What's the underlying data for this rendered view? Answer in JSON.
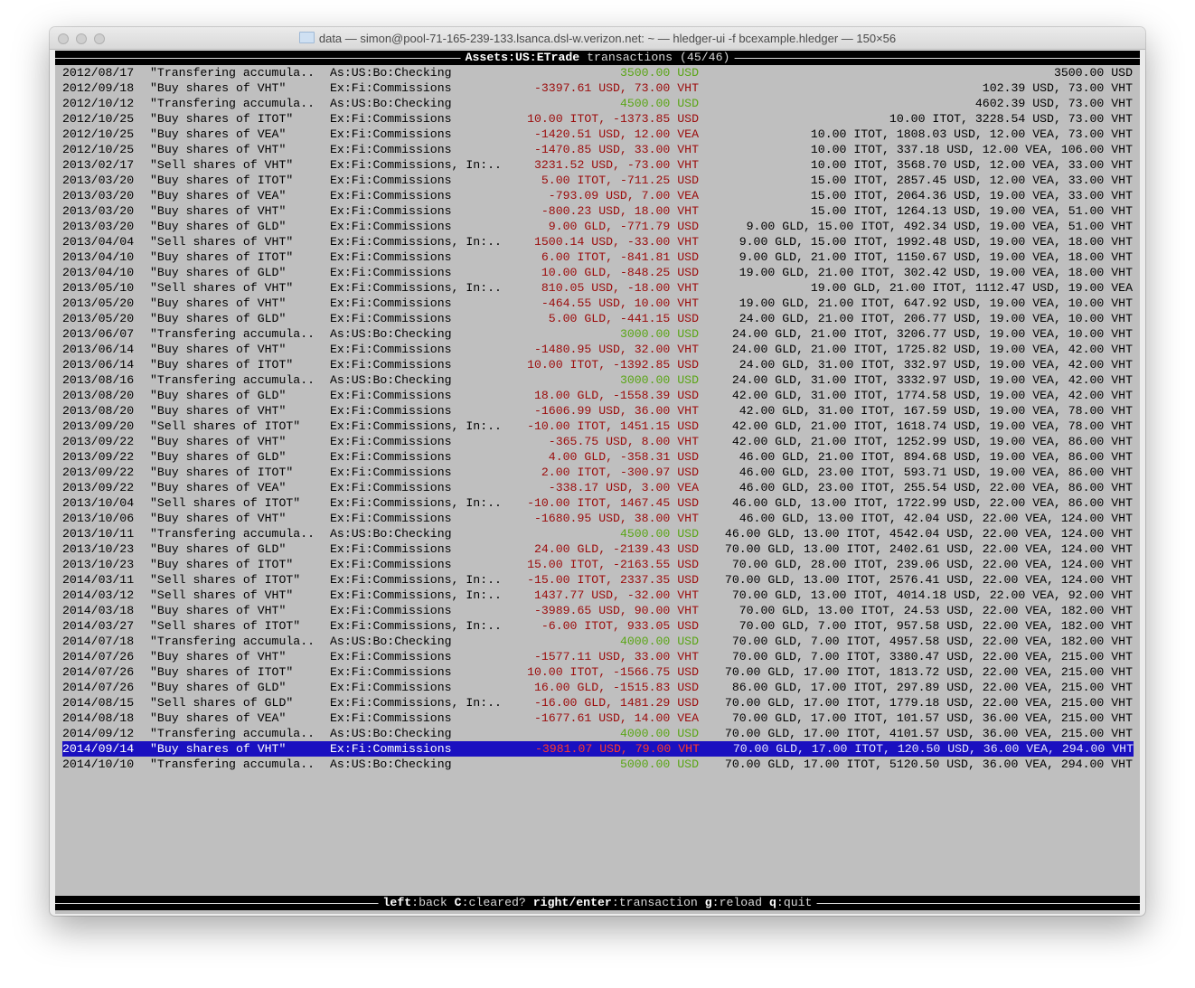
{
  "window": {
    "title": "data — simon@pool-71-165-239-133.lsanca.dsl-w.verizon.net: ~ — hledger-ui -f bcexample.hledger — 150×56"
  },
  "header": {
    "account": "Assets:US:ETrade",
    "suffix": " transactions (45/46)"
  },
  "colors": {
    "background": "#bfbfbf",
    "negative": "#9b0b0b",
    "positive": "#5aa516",
    "selection": "#1a10c0"
  },
  "selected_index": 44,
  "rows": [
    {
      "date": "2012/08/17",
      "desc": "\"Transfering accumula..",
      "account": "As:US:Bo:Checking",
      "amount": "3500.00 USD",
      "positive": true,
      "balance": "3500.00 USD"
    },
    {
      "date": "2012/09/18",
      "desc": "\"Buy shares of VHT\"",
      "account": "Ex:Fi:Commissions",
      "amount": "-3397.61 USD, 73.00 VHT",
      "positive": false,
      "balance": "102.39 USD, 73.00 VHT"
    },
    {
      "date": "2012/10/12",
      "desc": "\"Transfering accumula..",
      "account": "As:US:Bo:Checking",
      "amount": "4500.00 USD",
      "positive": true,
      "balance": "4602.39 USD, 73.00 VHT"
    },
    {
      "date": "2012/10/25",
      "desc": "\"Buy shares of ITOT\"",
      "account": "Ex:Fi:Commissions",
      "amount": "10.00 ITOT, -1373.85 USD",
      "positive": false,
      "balance": "10.00 ITOT, 3228.54 USD, 73.00 VHT"
    },
    {
      "date": "2012/10/25",
      "desc": "\"Buy shares of VEA\"",
      "account": "Ex:Fi:Commissions",
      "amount": "-1420.51 USD, 12.00 VEA",
      "positive": false,
      "balance": "10.00 ITOT, 1808.03 USD, 12.00 VEA, 73.00 VHT"
    },
    {
      "date": "2012/10/25",
      "desc": "\"Buy shares of VHT\"",
      "account": "Ex:Fi:Commissions",
      "amount": "-1470.85 USD, 33.00 VHT",
      "positive": false,
      "balance": "10.00 ITOT, 337.18 USD, 12.00 VEA, 106.00 VHT"
    },
    {
      "date": "2013/02/17",
      "desc": "\"Sell shares of VHT\"",
      "account": "Ex:Fi:Commissions, In:..",
      "amount": "3231.52 USD, -73.00 VHT",
      "positive": false,
      "balance": "10.00 ITOT, 3568.70 USD, 12.00 VEA, 33.00 VHT"
    },
    {
      "date": "2013/03/20",
      "desc": "\"Buy shares of ITOT\"",
      "account": "Ex:Fi:Commissions",
      "amount": "5.00 ITOT, -711.25 USD",
      "positive": false,
      "balance": "15.00 ITOT, 2857.45 USD, 12.00 VEA, 33.00 VHT"
    },
    {
      "date": "2013/03/20",
      "desc": "\"Buy shares of VEA\"",
      "account": "Ex:Fi:Commissions",
      "amount": "-793.09 USD, 7.00 VEA",
      "positive": false,
      "balance": "15.00 ITOT, 2064.36 USD, 19.00 VEA, 33.00 VHT"
    },
    {
      "date": "2013/03/20",
      "desc": "\"Buy shares of VHT\"",
      "account": "Ex:Fi:Commissions",
      "amount": "-800.23 USD, 18.00 VHT",
      "positive": false,
      "balance": "15.00 ITOT, 1264.13 USD, 19.00 VEA, 51.00 VHT"
    },
    {
      "date": "2013/03/20",
      "desc": "\"Buy shares of GLD\"",
      "account": "Ex:Fi:Commissions",
      "amount": "9.00 GLD, -771.79 USD",
      "positive": false,
      "balance": "9.00 GLD, 15.00 ITOT, 492.34 USD, 19.00 VEA, 51.00 VHT"
    },
    {
      "date": "2013/04/04",
      "desc": "\"Sell shares of VHT\"",
      "account": "Ex:Fi:Commissions, In:..",
      "amount": "1500.14 USD, -33.00 VHT",
      "positive": false,
      "balance": "9.00 GLD, 15.00 ITOT, 1992.48 USD, 19.00 VEA, 18.00 VHT"
    },
    {
      "date": "2013/04/10",
      "desc": "\"Buy shares of ITOT\"",
      "account": "Ex:Fi:Commissions",
      "amount": "6.00 ITOT, -841.81 USD",
      "positive": false,
      "balance": "9.00 GLD, 21.00 ITOT, 1150.67 USD, 19.00 VEA, 18.00 VHT"
    },
    {
      "date": "2013/04/10",
      "desc": "\"Buy shares of GLD\"",
      "account": "Ex:Fi:Commissions",
      "amount": "10.00 GLD, -848.25 USD",
      "positive": false,
      "balance": "19.00 GLD, 21.00 ITOT, 302.42 USD, 19.00 VEA, 18.00 VHT"
    },
    {
      "date": "2013/05/10",
      "desc": "\"Sell shares of VHT\"",
      "account": "Ex:Fi:Commissions, In:..",
      "amount": "810.05 USD, -18.00 VHT",
      "positive": false,
      "balance": "19.00 GLD, 21.00 ITOT, 1112.47 USD, 19.00 VEA"
    },
    {
      "date": "2013/05/20",
      "desc": "\"Buy shares of VHT\"",
      "account": "Ex:Fi:Commissions",
      "amount": "-464.55 USD, 10.00 VHT",
      "positive": false,
      "balance": "19.00 GLD, 21.00 ITOT, 647.92 USD, 19.00 VEA, 10.00 VHT"
    },
    {
      "date": "2013/05/20",
      "desc": "\"Buy shares of GLD\"",
      "account": "Ex:Fi:Commissions",
      "amount": "5.00 GLD, -441.15 USD",
      "positive": false,
      "balance": "24.00 GLD, 21.00 ITOT, 206.77 USD, 19.00 VEA, 10.00 VHT"
    },
    {
      "date": "2013/06/07",
      "desc": "\"Transfering accumula..",
      "account": "As:US:Bo:Checking",
      "amount": "3000.00 USD",
      "positive": true,
      "balance": "24.00 GLD, 21.00 ITOT, 3206.77 USD, 19.00 VEA, 10.00 VHT"
    },
    {
      "date": "2013/06/14",
      "desc": "\"Buy shares of VHT\"",
      "account": "Ex:Fi:Commissions",
      "amount": "-1480.95 USD, 32.00 VHT",
      "positive": false,
      "balance": "24.00 GLD, 21.00 ITOT, 1725.82 USD, 19.00 VEA, 42.00 VHT"
    },
    {
      "date": "2013/06/14",
      "desc": "\"Buy shares of ITOT\"",
      "account": "Ex:Fi:Commissions",
      "amount": "10.00 ITOT, -1392.85 USD",
      "positive": false,
      "balance": "24.00 GLD, 31.00 ITOT, 332.97 USD, 19.00 VEA, 42.00 VHT"
    },
    {
      "date": "2013/08/16",
      "desc": "\"Transfering accumula..",
      "account": "As:US:Bo:Checking",
      "amount": "3000.00 USD",
      "positive": true,
      "balance": "24.00 GLD, 31.00 ITOT, 3332.97 USD, 19.00 VEA, 42.00 VHT"
    },
    {
      "date": "2013/08/20",
      "desc": "\"Buy shares of GLD\"",
      "account": "Ex:Fi:Commissions",
      "amount": "18.00 GLD, -1558.39 USD",
      "positive": false,
      "balance": "42.00 GLD, 31.00 ITOT, 1774.58 USD, 19.00 VEA, 42.00 VHT"
    },
    {
      "date": "2013/08/20",
      "desc": "\"Buy shares of VHT\"",
      "account": "Ex:Fi:Commissions",
      "amount": "-1606.99 USD, 36.00 VHT",
      "positive": false,
      "balance": "42.00 GLD, 31.00 ITOT, 167.59 USD, 19.00 VEA, 78.00 VHT"
    },
    {
      "date": "2013/09/20",
      "desc": "\"Sell shares of ITOT\"",
      "account": "Ex:Fi:Commissions, In:..",
      "amount": "-10.00 ITOT, 1451.15 USD",
      "positive": false,
      "balance": "42.00 GLD, 21.00 ITOT, 1618.74 USD, 19.00 VEA, 78.00 VHT"
    },
    {
      "date": "2013/09/22",
      "desc": "\"Buy shares of VHT\"",
      "account": "Ex:Fi:Commissions",
      "amount": "-365.75 USD, 8.00 VHT",
      "positive": false,
      "balance": "42.00 GLD, 21.00 ITOT, 1252.99 USD, 19.00 VEA, 86.00 VHT"
    },
    {
      "date": "2013/09/22",
      "desc": "\"Buy shares of GLD\"",
      "account": "Ex:Fi:Commissions",
      "amount": "4.00 GLD, -358.31 USD",
      "positive": false,
      "balance": "46.00 GLD, 21.00 ITOT, 894.68 USD, 19.00 VEA, 86.00 VHT"
    },
    {
      "date": "2013/09/22",
      "desc": "\"Buy shares of ITOT\"",
      "account": "Ex:Fi:Commissions",
      "amount": "2.00 ITOT, -300.97 USD",
      "positive": false,
      "balance": "46.00 GLD, 23.00 ITOT, 593.71 USD, 19.00 VEA, 86.00 VHT"
    },
    {
      "date": "2013/09/22",
      "desc": "\"Buy shares of VEA\"",
      "account": "Ex:Fi:Commissions",
      "amount": "-338.17 USD, 3.00 VEA",
      "positive": false,
      "balance": "46.00 GLD, 23.00 ITOT, 255.54 USD, 22.00 VEA, 86.00 VHT"
    },
    {
      "date": "2013/10/04",
      "desc": "\"Sell shares of ITOT\"",
      "account": "Ex:Fi:Commissions, In:..",
      "amount": "-10.00 ITOT, 1467.45 USD",
      "positive": false,
      "balance": "46.00 GLD, 13.00 ITOT, 1722.99 USD, 22.00 VEA, 86.00 VHT"
    },
    {
      "date": "2013/10/06",
      "desc": "\"Buy shares of VHT\"",
      "account": "Ex:Fi:Commissions",
      "amount": "-1680.95 USD, 38.00 VHT",
      "positive": false,
      "balance": "46.00 GLD, 13.00 ITOT, 42.04 USD, 22.00 VEA, 124.00 VHT"
    },
    {
      "date": "2013/10/11",
      "desc": "\"Transfering accumula..",
      "account": "As:US:Bo:Checking",
      "amount": "4500.00 USD",
      "positive": true,
      "balance": "46.00 GLD, 13.00 ITOT, 4542.04 USD, 22.00 VEA, 124.00 VHT"
    },
    {
      "date": "2013/10/23",
      "desc": "\"Buy shares of GLD\"",
      "account": "Ex:Fi:Commissions",
      "amount": "24.00 GLD, -2139.43 USD",
      "positive": false,
      "balance": "70.00 GLD, 13.00 ITOT, 2402.61 USD, 22.00 VEA, 124.00 VHT"
    },
    {
      "date": "2013/10/23",
      "desc": "\"Buy shares of ITOT\"",
      "account": "Ex:Fi:Commissions",
      "amount": "15.00 ITOT, -2163.55 USD",
      "positive": false,
      "balance": "70.00 GLD, 28.00 ITOT, 239.06 USD, 22.00 VEA, 124.00 VHT"
    },
    {
      "date": "2014/03/11",
      "desc": "\"Sell shares of ITOT\"",
      "account": "Ex:Fi:Commissions, In:..",
      "amount": "-15.00 ITOT, 2337.35 USD",
      "positive": false,
      "balance": "70.00 GLD, 13.00 ITOT, 2576.41 USD, 22.00 VEA, 124.00 VHT"
    },
    {
      "date": "2014/03/12",
      "desc": "\"Sell shares of VHT\"",
      "account": "Ex:Fi:Commissions, In:..",
      "amount": "1437.77 USD, -32.00 VHT",
      "positive": false,
      "balance": "70.00 GLD, 13.00 ITOT, 4014.18 USD, 22.00 VEA, 92.00 VHT"
    },
    {
      "date": "2014/03/18",
      "desc": "\"Buy shares of VHT\"",
      "account": "Ex:Fi:Commissions",
      "amount": "-3989.65 USD, 90.00 VHT",
      "positive": false,
      "balance": "70.00 GLD, 13.00 ITOT, 24.53 USD, 22.00 VEA, 182.00 VHT"
    },
    {
      "date": "2014/03/27",
      "desc": "\"Sell shares of ITOT\"",
      "account": "Ex:Fi:Commissions, In:..",
      "amount": "-6.00 ITOT, 933.05 USD",
      "positive": false,
      "balance": "70.00 GLD, 7.00 ITOT, 957.58 USD, 22.00 VEA, 182.00 VHT"
    },
    {
      "date": "2014/07/18",
      "desc": "\"Transfering accumula..",
      "account": "As:US:Bo:Checking",
      "amount": "4000.00 USD",
      "positive": true,
      "balance": "70.00 GLD, 7.00 ITOT, 4957.58 USD, 22.00 VEA, 182.00 VHT"
    },
    {
      "date": "2014/07/26",
      "desc": "\"Buy shares of VHT\"",
      "account": "Ex:Fi:Commissions",
      "amount": "-1577.11 USD, 33.00 VHT",
      "positive": false,
      "balance": "70.00 GLD, 7.00 ITOT, 3380.47 USD, 22.00 VEA, 215.00 VHT"
    },
    {
      "date": "2014/07/26",
      "desc": "\"Buy shares of ITOT\"",
      "account": "Ex:Fi:Commissions",
      "amount": "10.00 ITOT, -1566.75 USD",
      "positive": false,
      "balance": "70.00 GLD, 17.00 ITOT, 1813.72 USD, 22.00 VEA, 215.00 VHT"
    },
    {
      "date": "2014/07/26",
      "desc": "\"Buy shares of GLD\"",
      "account": "Ex:Fi:Commissions",
      "amount": "16.00 GLD, -1515.83 USD",
      "positive": false,
      "balance": "86.00 GLD, 17.00 ITOT, 297.89 USD, 22.00 VEA, 215.00 VHT"
    },
    {
      "date": "2014/08/15",
      "desc": "\"Sell shares of GLD\"",
      "account": "Ex:Fi:Commissions, In:..",
      "amount": "-16.00 GLD, 1481.29 USD",
      "positive": false,
      "balance": "70.00 GLD, 17.00 ITOT, 1779.18 USD, 22.00 VEA, 215.00 VHT"
    },
    {
      "date": "2014/08/18",
      "desc": "\"Buy shares of VEA\"",
      "account": "Ex:Fi:Commissions",
      "amount": "-1677.61 USD, 14.00 VEA",
      "positive": false,
      "balance": "70.00 GLD, 17.00 ITOT, 101.57 USD, 36.00 VEA, 215.00 VHT"
    },
    {
      "date": "2014/09/12",
      "desc": "\"Transfering accumula..",
      "account": "As:US:Bo:Checking",
      "amount": "4000.00 USD",
      "positive": true,
      "balance": "70.00 GLD, 17.00 ITOT, 4101.57 USD, 36.00 VEA, 215.00 VHT"
    },
    {
      "date": "2014/09/14",
      "desc": "\"Buy shares of VHT\"",
      "account": "Ex:Fi:Commissions",
      "amount": "-3981.07 USD, 79.00 VHT",
      "positive": false,
      "balance": "70.00 GLD, 17.00 ITOT, 120.50 USD, 36.00 VEA, 294.00 VHT"
    },
    {
      "date": "2014/10/10",
      "desc": "\"Transfering accumula..",
      "account": "As:US:Bo:Checking",
      "amount": "5000.00 USD",
      "positive": true,
      "balance": "70.00 GLD, 17.00 ITOT, 5120.50 USD, 36.00 VEA, 294.00 VHT"
    }
  ],
  "footer": {
    "keys": [
      {
        "key": "left",
        "action": "back"
      },
      {
        "key": "C",
        "action": "cleared?"
      },
      {
        "key": "right/enter",
        "action": "transaction"
      },
      {
        "key": "g",
        "action": "reload"
      },
      {
        "key": "q",
        "action": "quit"
      }
    ]
  }
}
